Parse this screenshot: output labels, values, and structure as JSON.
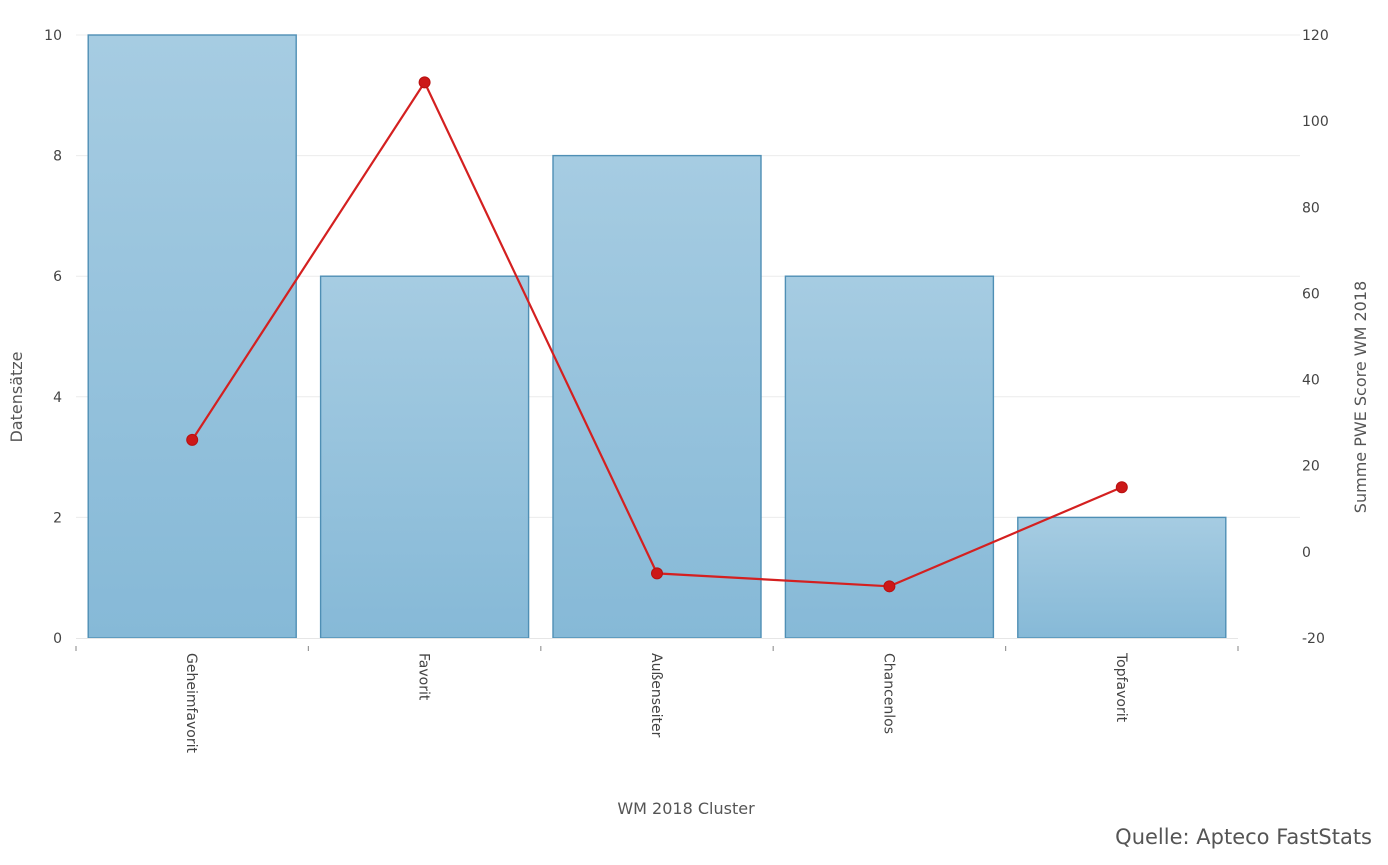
{
  "chart_data": {
    "type": "bar",
    "categories": [
      "Geheimfavorit",
      "Favorit",
      "Außenseiter",
      "Chancenlos",
      "Topfavorit"
    ],
    "series": [
      {
        "type": "bar",
        "axis": "left",
        "values": [
          10,
          6,
          8,
          6,
          2
        ],
        "color": "#93c2dc",
        "stroke": "#4f8fb5"
      },
      {
        "type": "line",
        "axis": "right",
        "values": [
          26,
          109,
          -5,
          -8,
          15
        ],
        "color": "#d42020"
      }
    ],
    "xlabel": "WM 2018 Cluster",
    "ylabel": "Datensätze",
    "y2label": "Summe PWE Score WM 2018",
    "ylim": [
      0,
      10
    ],
    "y2lim": [
      -20,
      120
    ],
    "yticks": [
      "0",
      "2",
      "4",
      "6",
      "8",
      "10"
    ],
    "y2ticks": [
      "-20",
      "0",
      "20",
      "40",
      "60",
      "80",
      "100",
      "120"
    ],
    "grid": true,
    "legend": "none"
  },
  "source": "Quelle: Apteco FastStats"
}
